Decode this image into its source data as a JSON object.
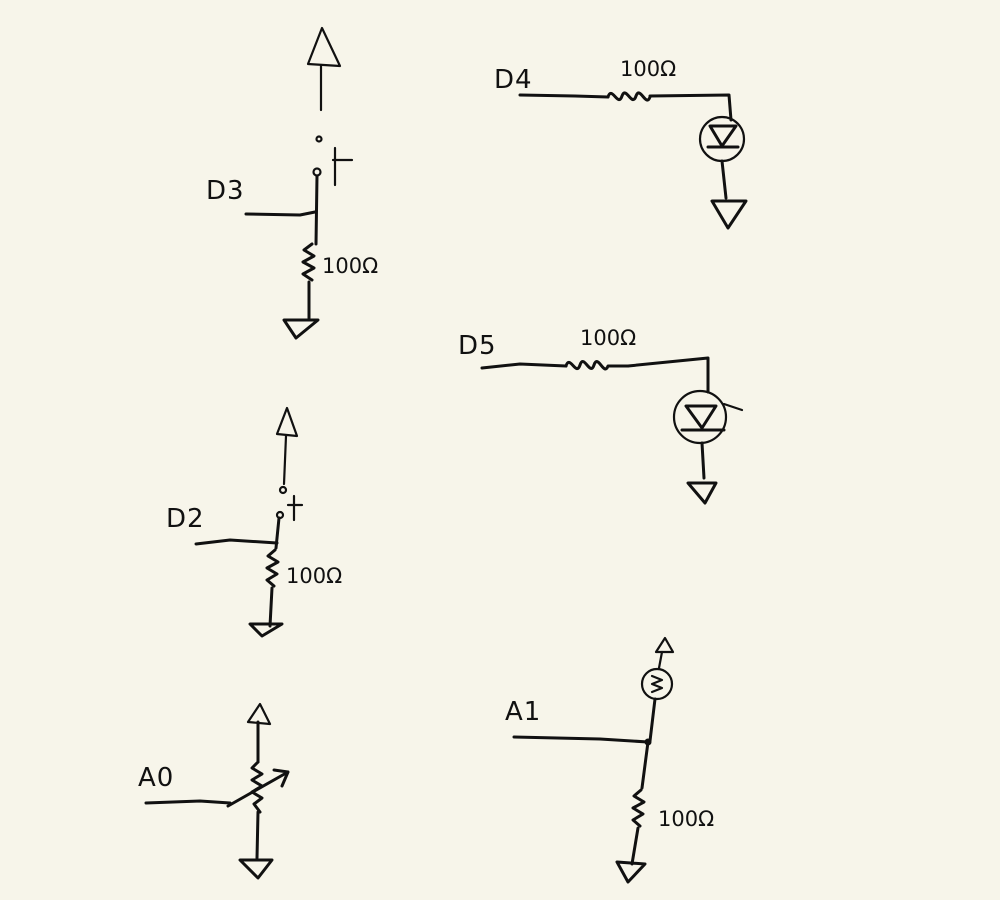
{
  "circuits": {
    "d3": {
      "pin": "D3",
      "resistor": "100Ω"
    },
    "d4": {
      "pin": "D4",
      "resistor": "100Ω"
    },
    "d5": {
      "pin": "D5",
      "resistor": "100Ω"
    },
    "d2": {
      "pin": "D2",
      "resistor": "100Ω"
    },
    "a1": {
      "pin": "A1",
      "resistor": "100Ω"
    },
    "a0": {
      "pin": "A0"
    }
  },
  "colors": {
    "background": "#f7f5ea",
    "ink": "#111111"
  }
}
